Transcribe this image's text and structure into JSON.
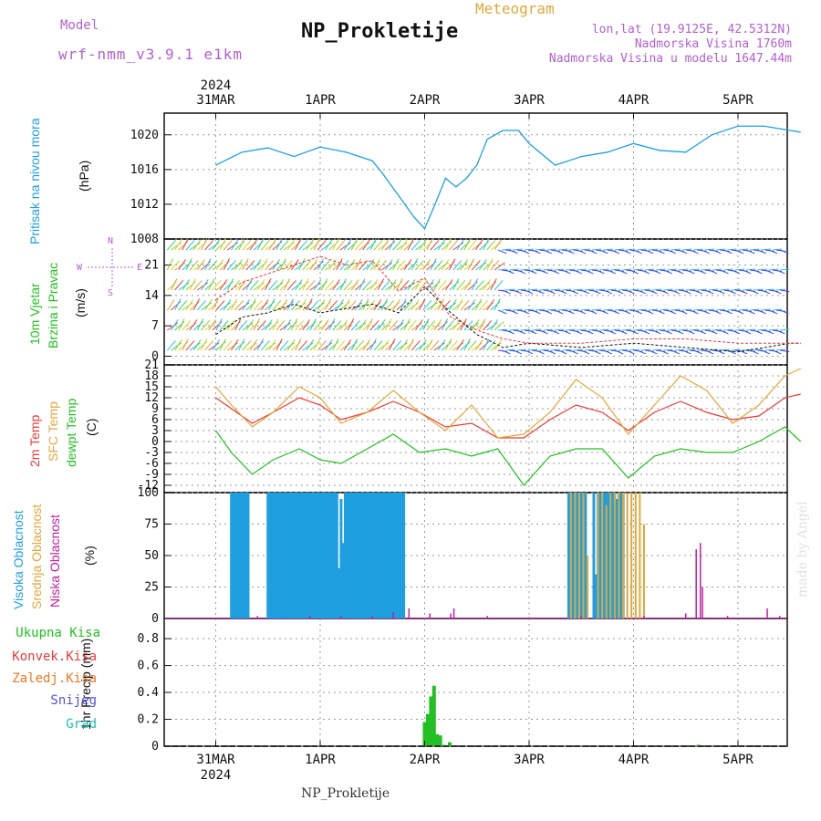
{
  "header": {
    "model_label": "Model",
    "model_value": "wrf-nmm_v3.9.1 e1km",
    "title": "NP_Prokletije",
    "meteogram": "Meteogram",
    "lonlat": "lon,lat (19.9125E, 42.5312N)",
    "altitude": "Nadmorska Visina 1760m",
    "altitude_model": "Nadmorska Visina u modelu 1647.44m",
    "footer": "NP_Prokletije",
    "credit": "made by Angel"
  },
  "colors": {
    "pressure": "#1e9fe0",
    "temp2m": "#e83a3a",
    "sfc": "#e0a838",
    "dewpt": "#22c022",
    "high_cloud": "#1e9fe0",
    "mid_cloud": "#e0a838",
    "low_cloud": "#c020a0",
    "precip": "#22c022",
    "axis_purple": "#b060d0"
  },
  "time_axis": {
    "year": "2024",
    "labels": [
      "31MAR",
      "1APR",
      "2APR",
      "3APR",
      "4APR",
      "5APR"
    ]
  },
  "chart_data": [
    {
      "type": "line",
      "panel": "pressure",
      "ylabel": [
        "Pritisak na nivou mora",
        "(hPa)"
      ],
      "ylim": [
        1008,
        1022.5
      ],
      "yticks": [
        1008,
        1012,
        1016,
        1020
      ],
      "x_unit": "days from 31MAR 00",
      "x": [
        0,
        0.25,
        0.5,
        0.75,
        1.0,
        1.25,
        1.5,
        1.6,
        1.75,
        1.9,
        2.0,
        2.1,
        2.2,
        2.3,
        2.4,
        2.5,
        2.6,
        2.75,
        2.9,
        3.0,
        3.25,
        3.5,
        3.75,
        4.0,
        4.25,
        4.5,
        4.75,
        5.0,
        5.25,
        5.5,
        5.6
      ],
      "values": [
        1016.5,
        1018.0,
        1018.5,
        1017.5,
        1018.6,
        1018.0,
        1017.0,
        1015.5,
        1013.0,
        1010.5,
        1009.2,
        1012.0,
        1015.0,
        1014.0,
        1015.0,
        1016.5,
        1019.5,
        1020.5,
        1020.5,
        1019.0,
        1016.5,
        1017.5,
        1018.0,
        1019.0,
        1018.2,
        1018.0,
        1020.0,
        1021.0,
        1021.0,
        1020.5,
        1020.3
      ],
      "series": [
        {
          "name": "",
          "color": "#1e9fe0"
        }
      ]
    },
    {
      "type": "line",
      "panel": "wind",
      "ylabel": [
        "10m Vjetar",
        "Brzina i Pravac",
        "(m/s)"
      ],
      "direction_key": [
        "N",
        "E",
        "W",
        "S"
      ],
      "ylim": [
        -2,
        27
      ],
      "yticks": [
        0,
        7,
        14,
        21
      ],
      "x": [
        0,
        0.25,
        0.5,
        0.75,
        1.0,
        1.25,
        1.5,
        1.75,
        2.0,
        2.25,
        2.5,
        2.75,
        3.0,
        3.5,
        4.0,
        4.5,
        5.0,
        5.5,
        5.6
      ],
      "speed": [
        5,
        9,
        10,
        12,
        10,
        11,
        12,
        10,
        16,
        10,
        5,
        2,
        3,
        2,
        3,
        2,
        1,
        3,
        3
      ],
      "gust": [
        13,
        17,
        19,
        21,
        23,
        21,
        22,
        15,
        18,
        9,
        6,
        4,
        3,
        3,
        4,
        4,
        3,
        3,
        3
      ],
      "series": [
        {
          "name": "",
          "color": "#111111"
        },
        {
          "name": "",
          "color": "#e83a3a"
        }
      ]
    },
    {
      "type": "line",
      "panel": "temperature",
      "ylabel": [
        "2m Temp",
        "SFC Temp",
        "dewpt Temp",
        "(C)"
      ],
      "ylim": [
        -14,
        21
      ],
      "yticks": [
        -12,
        -9,
        -6,
        -3,
        0,
        3,
        6,
        9,
        12,
        15,
        18,
        21
      ],
      "x": [
        0,
        0.15,
        0.35,
        0.55,
        0.8,
        1.0,
        1.2,
        1.45,
        1.7,
        1.95,
        2.2,
        2.45,
        2.7,
        2.95,
        3.2,
        3.45,
        3.7,
        3.95,
        4.2,
        4.45,
        4.7,
        4.95,
        5.2,
        5.45,
        5.6
      ],
      "series": [
        {
          "name": "2m Temp",
          "color": "#e83a3a",
          "values": [
            12,
            9,
            5,
            8,
            12,
            10,
            6,
            8,
            11,
            8,
            4,
            5,
            1,
            1,
            6,
            10,
            8,
            3,
            8,
            11,
            8,
            6,
            7,
            12,
            13
          ]
        },
        {
          "name": "SFC Temp",
          "color": "#e0a838",
          "values": [
            15,
            10,
            4,
            8,
            15,
            12,
            5,
            8,
            14,
            8,
            3,
            10,
            1,
            2,
            8,
            17,
            12,
            2,
            10,
            18,
            14,
            5,
            10,
            18,
            20
          ]
        },
        {
          "name": "dewpt Temp",
          "color": "#22c022",
          "values": [
            3,
            -3,
            -9,
            -5,
            -2,
            -5,
            -6,
            -2,
            2,
            -3,
            -2,
            -4,
            -2,
            -12,
            -4,
            -2,
            -2,
            -10,
            -4,
            -2,
            -3,
            -3,
            0,
            4,
            0
          ]
        }
      ]
    },
    {
      "type": "bar",
      "panel": "cloud",
      "ylabel": [
        "Visoka Oblacnost",
        "Srednja Oblacnost",
        "Niska Oblacnost",
        "(%)"
      ],
      "ylim": [
        0,
        100
      ],
      "yticks": [
        0,
        25,
        50,
        75,
        100
      ],
      "series": [
        {
          "name": "Visoka Oblacnost",
          "color": "#1e9fe0",
          "x": [
            0.15,
            0.17,
            0.19,
            0.21,
            0.23,
            0.25,
            0.27,
            0.29,
            0.31,
            0.5,
            0.52,
            0.54,
            0.56,
            0.58,
            0.6,
            0.62,
            0.64,
            0.66,
            0.68,
            0.7,
            0.72,
            0.74,
            0.76,
            0.78,
            0.8,
            0.82,
            0.84,
            0.86,
            0.88,
            0.9,
            0.92,
            0.94,
            0.96,
            0.98,
            1.0,
            1.02,
            1.04,
            1.06,
            1.08,
            1.1,
            1.12,
            1.14,
            1.16,
            1.18,
            1.2,
            1.22,
            1.24,
            1.26,
            1.28,
            1.3,
            1.32,
            1.34,
            1.36,
            1.38,
            1.4,
            1.42,
            1.44,
            1.46,
            1.48,
            1.5,
            1.52,
            1.54,
            1.56,
            1.58,
            1.6,
            1.62,
            1.64,
            1.66,
            1.68,
            1.7,
            1.72,
            1.74,
            1.76,
            1.78,
            1.8,
            3.38,
            3.4,
            3.42,
            3.44,
            3.46,
            3.48,
            3.5,
            3.52,
            3.54,
            3.62,
            3.64,
            3.66,
            3.68,
            3.7,
            3.72,
            3.74,
            3.76,
            3.78,
            3.8,
            3.82,
            3.84,
            3.86,
            3.88,
            3.9
          ],
          "values": [
            100,
            100,
            100,
            100,
            100,
            100,
            100,
            100,
            100,
            100,
            100,
            100,
            100,
            100,
            100,
            100,
            100,
            100,
            100,
            100,
            100,
            100,
            100,
            100,
            100,
            100,
            100,
            100,
            100,
            100,
            100,
            100,
            100,
            100,
            100,
            100,
            100,
            100,
            100,
            100,
            100,
            100,
            100,
            40,
            95,
            60,
            100,
            100,
            100,
            100,
            100,
            100,
            100,
            100,
            100,
            100,
            100,
            100,
            100,
            100,
            100,
            100,
            100,
            100,
            100,
            100,
            100,
            100,
            100,
            100,
            100,
            100,
            100,
            100,
            100,
            100,
            100,
            100,
            100,
            100,
            100,
            100,
            100,
            100,
            100,
            35,
            100,
            100,
            100,
            100,
            100,
            100,
            100,
            100,
            100,
            95,
            100,
            100,
            100
          ]
        },
        {
          "name": "Srednja Oblacnost",
          "color": "#e0a838",
          "x": [
            3.4,
            3.44,
            3.48,
            3.52,
            3.56,
            3.66,
            3.7,
            3.74,
            3.78,
            3.82,
            3.86,
            3.9,
            3.94,
            3.98,
            4.02,
            4.06,
            4.1
          ],
          "values": [
            100,
            100,
            100,
            100,
            50,
            100,
            100,
            90,
            100,
            100,
            100,
            100,
            100,
            100,
            100,
            100,
            75
          ]
        },
        {
          "name": "Niska Oblacnost",
          "color": "#c020a0",
          "x": [
            0.4,
            0.9,
            1.2,
            1.5,
            1.7,
            1.85,
            2.05,
            2.25,
            2.28,
            2.6,
            3.0,
            3.5,
            4.1,
            4.5,
            4.6,
            4.64,
            4.66,
            4.9,
            5.28,
            5.4
          ],
          "values": [
            2,
            2,
            2,
            2,
            5,
            8,
            4,
            4,
            8,
            2,
            1,
            2,
            2,
            4,
            55,
            60,
            25,
            2,
            8,
            2
          ]
        }
      ]
    },
    {
      "type": "bar",
      "panel": "precip",
      "ylabel": [
        "1hr Precip (mm)"
      ],
      "legend": [
        "Ukupna Kisa",
        "Konvek.Kisa",
        "Zaledj.Kisa",
        "Snijeg",
        "Grad"
      ],
      "legend_colors": [
        "#22c022",
        "#e83a3a",
        "#f07820",
        "#5050e0",
        "#20c0b0"
      ],
      "ylim": [
        0,
        0.95
      ],
      "yticks": [
        0,
        0.2,
        0.4,
        0.6,
        0.8
      ],
      "series": [
        {
          "name": "Ukupna Kisa",
          "color": "#22c022",
          "x": [
            2.0,
            2.03,
            2.06,
            2.09,
            2.12,
            2.15,
            2.18,
            2.24,
            4.62
          ],
          "values": [
            0.18,
            0.24,
            0.37,
            0.45,
            0.09,
            0.08,
            0.01,
            0.03,
            0.01
          ]
        }
      ]
    }
  ]
}
